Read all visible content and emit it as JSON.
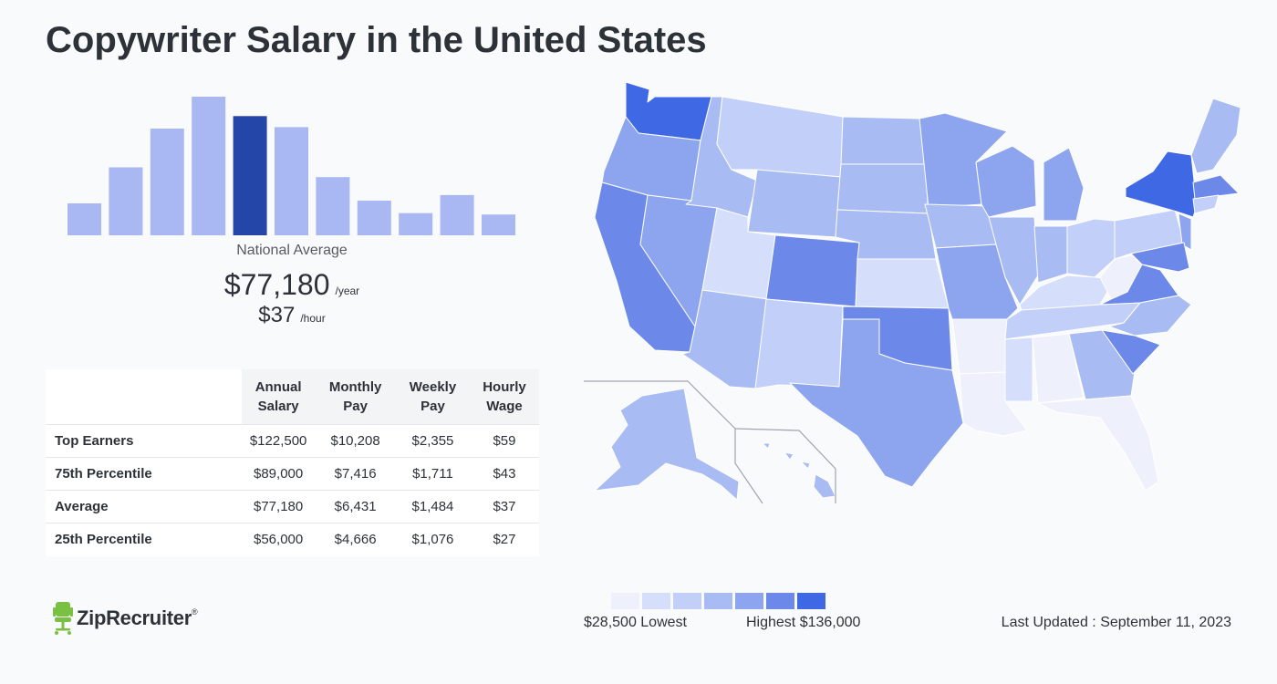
{
  "title": "Copywriter Salary in the United States",
  "chart_data": [
    {
      "type": "bar",
      "description_visible": "salary distribution histogram",
      "bar_heights_relative": [
        23,
        49,
        77,
        100,
        86,
        78,
        42,
        25,
        16,
        29,
        15
      ],
      "highlight_index": 4,
      "colors": {
        "bar": "#a9b8f2",
        "highlight": "#2446a8"
      }
    },
    {
      "type": "table",
      "columns": [
        "Annual Salary",
        "Monthly Pay",
        "Weekly Pay",
        "Hourly Wage"
      ],
      "rows": [
        {
          "label": "Top Earners",
          "values": [
            "$122,500",
            "$10,208",
            "$2,355",
            "$59"
          ]
        },
        {
          "label": "75th Percentile",
          "values": [
            "$89,000",
            "$7,416",
            "$1,711",
            "$43"
          ]
        },
        {
          "label": "Average",
          "values": [
            "$77,180",
            "$6,431",
            "$1,484",
            "$37"
          ]
        },
        {
          "label": "25th Percentile",
          "values": [
            "$56,000",
            "$4,666",
            "$1,076",
            "$27"
          ]
        }
      ]
    }
  ],
  "national": {
    "label": "National Average",
    "yearly": "$77,180",
    "yearly_unit": "/year",
    "hourly": "$37",
    "hourly_unit": "/hour"
  },
  "table": {
    "headers": [
      [
        "Annual",
        "Salary"
      ],
      [
        "Monthly",
        "Pay"
      ],
      [
        "Weekly",
        "Pay"
      ],
      [
        "Hourly",
        "Wage"
      ]
    ]
  },
  "map": {
    "colors": [
      "#eef1fc",
      "#d5defa",
      "#c2cff8",
      "#a9bbf3",
      "#8da4ee",
      "#6c89ea",
      "#3f68e4"
    ]
  },
  "legend": {
    "low": "$28,500 Lowest",
    "high": "Highest $136,000",
    "colors": [
      "#eef1fc",
      "#d5defa",
      "#c2cff8",
      "#a9bbf3",
      "#8da4ee",
      "#6c89ea",
      "#3f68e4"
    ]
  },
  "updated": "Last Updated : September 11, 2023",
  "logo": {
    "text": "ZipRecruiter",
    "mark": "®",
    "color": "#7ac143"
  }
}
